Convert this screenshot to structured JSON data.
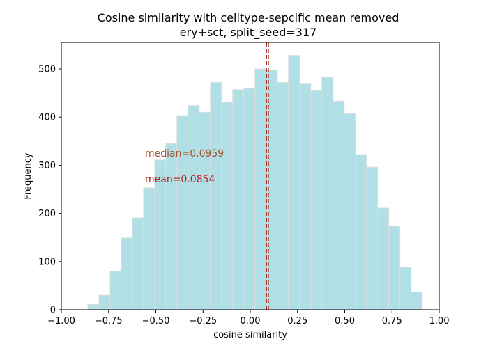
{
  "chart_data": {
    "type": "bar",
    "title": "Cosine similarity with celltype-sepcific mean removed",
    "subtitle": "ery+sct, split_seed=317",
    "xlabel": "cosine similarity",
    "ylabel": "Frequency",
    "xlim": [
      -1.0,
      1.0
    ],
    "ylim": [
      0,
      555
    ],
    "xticks": [
      "−1.00",
      "−0.75",
      "−0.50",
      "−0.25",
      "0.00",
      "0.25",
      "0.50",
      "0.75",
      "1.00"
    ],
    "xtick_values": [
      -1.0,
      -0.75,
      -0.5,
      -0.25,
      0.0,
      0.25,
      0.5,
      0.75,
      1.0
    ],
    "yticks": [
      "0",
      "100",
      "200",
      "300",
      "400",
      "500"
    ],
    "ytick_values": [
      0,
      100,
      200,
      300,
      400,
      500
    ],
    "bin_edges": [
      -0.86,
      -0.801,
      -0.742,
      -0.683,
      -0.624,
      -0.565,
      -0.506,
      -0.447,
      -0.388,
      -0.329,
      -0.27,
      -0.211,
      -0.152,
      -0.093,
      -0.034,
      0.025,
      0.084,
      0.143,
      0.202,
      0.261,
      0.32,
      0.379,
      0.438,
      0.497,
      0.556,
      0.615,
      0.674,
      0.733,
      0.792,
      0.851,
      0.91
    ],
    "values": [
      11,
      30,
      80,
      149,
      191,
      253,
      311,
      345,
      403,
      424,
      410,
      472,
      431,
      457,
      460,
      500,
      498,
      472,
      528,
      470,
      455,
      483,
      433,
      407,
      322,
      296,
      211,
      173,
      88,
      37
    ],
    "bar_color": "#b0e0e6",
    "bar_edge_color": "#dddddd",
    "vlines": [
      {
        "label": "median",
        "x": 0.0959,
        "color": "#a0522d",
        "text": "median=0.0959"
      },
      {
        "label": "mean",
        "x": 0.0854,
        "color": "#b22222",
        "text": "mean=0.0854"
      }
    ],
    "grid": false
  }
}
